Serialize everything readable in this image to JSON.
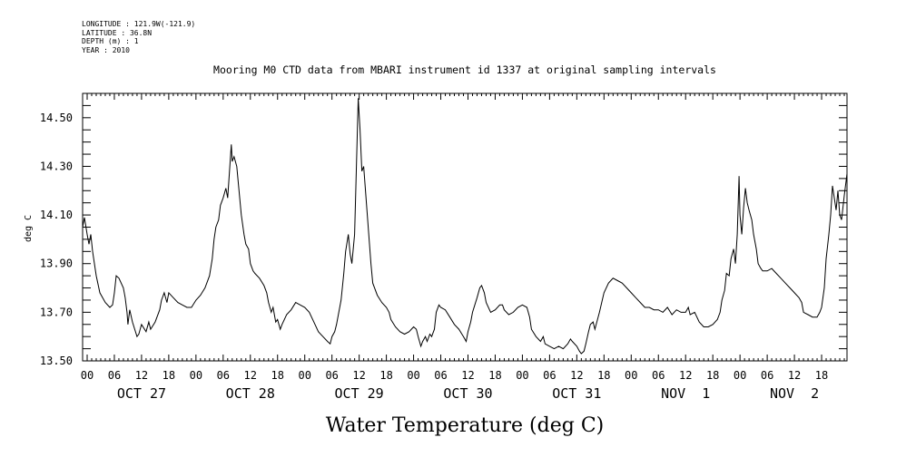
{
  "header": {
    "longitude": "LONGITUDE : 121.9W(-121.9)",
    "latitude": "LATITUDE : 36.8N",
    "depth": "DEPTH (m) : 1",
    "year": "YEAR : 2010"
  },
  "chart_data": {
    "type": "line",
    "title": "Mooring M0 CTD data from MBARI instrument id 1337 at original sampling intervals",
    "ylabel": "deg C",
    "xlabel": "Water Temperature (deg C)",
    "ylim": [
      13.5,
      14.6
    ],
    "yticks": [
      13.5,
      13.7,
      13.9,
      14.1,
      14.3,
      14.5
    ],
    "ytick_labels": [
      "13.50",
      "13.70",
      "13.90",
      "14.10",
      "14.30",
      "14.50"
    ],
    "xlim_hours": [
      -1,
      167.6
    ],
    "x_tick_hours": [
      0,
      6,
      12,
      18,
      24,
      30,
      36,
      42,
      48,
      54,
      60,
      66,
      72,
      78,
      84,
      90,
      96,
      102,
      108,
      114,
      120,
      126,
      132,
      138,
      144,
      150,
      156,
      162
    ],
    "x_tick_labels": [
      "00",
      "06",
      "12",
      "18",
      "00",
      "06",
      "12",
      "18",
      "00",
      "06",
      "12",
      "18",
      "00",
      "06",
      "12",
      "18",
      "00",
      "06",
      "12",
      "18",
      "00",
      "06",
      "12",
      "18",
      "00",
      "06",
      "12",
      "18"
    ],
    "dates": [
      {
        "label": "OCT 27",
        "hour": 12
      },
      {
        "label": "OCT 28",
        "hour": 36
      },
      {
        "label": "OCT 29",
        "hour": 60
      },
      {
        "label": "OCT 30",
        "hour": 84
      },
      {
        "label": "OCT 31",
        "hour": 108
      },
      {
        "label": "NOV  1",
        "hour": 132
      },
      {
        "label": "NOV  2",
        "hour": 156
      }
    ],
    "series": [
      {
        "values": [
          [
            -1,
            14.05
          ],
          [
            -0.6,
            14.09
          ],
          [
            0,
            14.02
          ],
          [
            0.4,
            13.98
          ],
          [
            0.8,
            14.02
          ],
          [
            1.2,
            13.95
          ],
          [
            2,
            13.85
          ],
          [
            2.8,
            13.78
          ],
          [
            4,
            13.74
          ],
          [
            5,
            13.72
          ],
          [
            5.6,
            13.73
          ],
          [
            6,
            13.78
          ],
          [
            6.4,
            13.85
          ],
          [
            7,
            13.84
          ],
          [
            8,
            13.8
          ],
          [
            8.4,
            13.76
          ],
          [
            8.8,
            13.7
          ],
          [
            9,
            13.65
          ],
          [
            9.4,
            13.71
          ],
          [
            10,
            13.66
          ],
          [
            11,
            13.6
          ],
          [
            11.4,
            13.61
          ],
          [
            12,
            13.65
          ],
          [
            13,
            13.62
          ],
          [
            13.6,
            13.66
          ],
          [
            14,
            13.63
          ],
          [
            15,
            13.66
          ],
          [
            16,
            13.71
          ],
          [
            16.4,
            13.75
          ],
          [
            17,
            13.78
          ],
          [
            17.6,
            13.74
          ],
          [
            18,
            13.78
          ],
          [
            19,
            13.76
          ],
          [
            20,
            13.74
          ],
          [
            21,
            13.73
          ],
          [
            22,
            13.72
          ],
          [
            23,
            13.72
          ],
          [
            24,
            13.75
          ],
          [
            25,
            13.77
          ],
          [
            26,
            13.8
          ],
          [
            27,
            13.85
          ],
          [
            27.6,
            13.92
          ],
          [
            28,
            14.0
          ],
          [
            28.4,
            14.05
          ],
          [
            29,
            14.08
          ],
          [
            29.4,
            14.14
          ],
          [
            30,
            14.17
          ],
          [
            30.6,
            14.21
          ],
          [
            31,
            14.17
          ],
          [
            31.4,
            14.28
          ],
          [
            31.8,
            14.39
          ],
          [
            32,
            14.32
          ],
          [
            32.4,
            14.34
          ],
          [
            33,
            14.3
          ],
          [
            33.4,
            14.22
          ],
          [
            34,
            14.1
          ],
          [
            34.6,
            14.02
          ],
          [
            35,
            13.98
          ],
          [
            35.6,
            13.96
          ],
          [
            36,
            13.9
          ],
          [
            36.6,
            13.87
          ],
          [
            37,
            13.86
          ],
          [
            38,
            13.84
          ],
          [
            39,
            13.81
          ],
          [
            39.6,
            13.78
          ],
          [
            40,
            13.74
          ],
          [
            40.6,
            13.7
          ],
          [
            41,
            13.72
          ],
          [
            41.6,
            13.66
          ],
          [
            42,
            13.67
          ],
          [
            42.6,
            13.63
          ],
          [
            43,
            13.65
          ],
          [
            44,
            13.69
          ],
          [
            45,
            13.71
          ],
          [
            46,
            13.74
          ],
          [
            47,
            13.73
          ],
          [
            48,
            13.72
          ],
          [
            49,
            13.7
          ],
          [
            50,
            13.66
          ],
          [
            51,
            13.62
          ],
          [
            52,
            13.6
          ],
          [
            53,
            13.58
          ],
          [
            53.6,
            13.57
          ],
          [
            54,
            13.6
          ],
          [
            54.6,
            13.62
          ],
          [
            55,
            13.65
          ],
          [
            56,
            13.75
          ],
          [
            56.6,
            13.86
          ],
          [
            57,
            13.95
          ],
          [
            57.6,
            14.02
          ],
          [
            58,
            13.94
          ],
          [
            58.4,
            13.9
          ],
          [
            59,
            14.02
          ],
          [
            59.4,
            14.3
          ],
          [
            59.8,
            14.58
          ],
          [
            60.2,
            14.45
          ],
          [
            60.6,
            14.28
          ],
          [
            61,
            14.3
          ],
          [
            61.4,
            14.2
          ],
          [
            62,
            14.05
          ],
          [
            62.6,
            13.9
          ],
          [
            63,
            13.82
          ],
          [
            64,
            13.77
          ],
          [
            65,
            13.74
          ],
          [
            66,
            13.72
          ],
          [
            66.6,
            13.7
          ],
          [
            67,
            13.67
          ],
          [
            68,
            13.64
          ],
          [
            69,
            13.62
          ],
          [
            70,
            13.61
          ],
          [
            71,
            13.62
          ],
          [
            72,
            13.64
          ],
          [
            72.6,
            13.63
          ],
          [
            73,
            13.6
          ],
          [
            73.6,
            13.56
          ],
          [
            74,
            13.58
          ],
          [
            74.6,
            13.6
          ],
          [
            75,
            13.58
          ],
          [
            75.6,
            13.61
          ],
          [
            76,
            13.6
          ],
          [
            76.6,
            13.63
          ],
          [
            77,
            13.7
          ],
          [
            77.6,
            13.73
          ],
          [
            78,
            13.72
          ],
          [
            79,
            13.71
          ],
          [
            80,
            13.68
          ],
          [
            81,
            13.65
          ],
          [
            82,
            13.63
          ],
          [
            83,
            13.6
          ],
          [
            83.6,
            13.58
          ],
          [
            84,
            13.62
          ],
          [
            84.6,
            13.66
          ],
          [
            85,
            13.7
          ],
          [
            86,
            13.76
          ],
          [
            86.6,
            13.8
          ],
          [
            87,
            13.81
          ],
          [
            87.6,
            13.78
          ],
          [
            88,
            13.74
          ],
          [
            89,
            13.7
          ],
          [
            90,
            13.71
          ],
          [
            91,
            13.73
          ],
          [
            91.6,
            13.73
          ],
          [
            92,
            13.71
          ],
          [
            93,
            13.69
          ],
          [
            94,
            13.7
          ],
          [
            95,
            13.72
          ],
          [
            96,
            13.73
          ],
          [
            97,
            13.72
          ],
          [
            97.6,
            13.68
          ],
          [
            98,
            13.63
          ],
          [
            99,
            13.6
          ],
          [
            100,
            13.58
          ],
          [
            100.6,
            13.6
          ],
          [
            101,
            13.57
          ],
          [
            102,
            13.56
          ],
          [
            103,
            13.55
          ],
          [
            104,
            13.56
          ],
          [
            105,
            13.55
          ],
          [
            106,
            13.57
          ],
          [
            106.6,
            13.59
          ],
          [
            107,
            13.58
          ],
          [
            108,
            13.56
          ],
          [
            108.6,
            13.54
          ],
          [
            109,
            13.53
          ],
          [
            109.6,
            13.54
          ],
          [
            110,
            13.57
          ],
          [
            110.6,
            13.62
          ],
          [
            111,
            13.65
          ],
          [
            111.6,
            13.66
          ],
          [
            112,
            13.63
          ],
          [
            113,
            13.7
          ],
          [
            114,
            13.78
          ],
          [
            115,
            13.82
          ],
          [
            116,
            13.84
          ],
          [
            117,
            13.83
          ],
          [
            118,
            13.82
          ],
          [
            119,
            13.8
          ],
          [
            120,
            13.78
          ],
          [
            121,
            13.76
          ],
          [
            122,
            13.74
          ],
          [
            123,
            13.72
          ],
          [
            124,
            13.72
          ],
          [
            125,
            13.71
          ],
          [
            126,
            13.71
          ],
          [
            127,
            13.7
          ],
          [
            128,
            13.72
          ],
          [
            129,
            13.69
          ],
          [
            130,
            13.71
          ],
          [
            131,
            13.7
          ],
          [
            132,
            13.7
          ],
          [
            132.6,
            13.72
          ],
          [
            133,
            13.69
          ],
          [
            134,
            13.7
          ],
          [
            135,
            13.66
          ],
          [
            136,
            13.64
          ],
          [
            137,
            13.64
          ],
          [
            138,
            13.65
          ],
          [
            139,
            13.67
          ],
          [
            139.6,
            13.7
          ],
          [
            140,
            13.75
          ],
          [
            140.6,
            13.79
          ],
          [
            141,
            13.86
          ],
          [
            141.6,
            13.85
          ],
          [
            142,
            13.92
          ],
          [
            142.6,
            13.96
          ],
          [
            143,
            13.9
          ],
          [
            143.4,
            14.02
          ],
          [
            143.8,
            14.26
          ],
          [
            144,
            14.1
          ],
          [
            144.4,
            14.02
          ],
          [
            144.8,
            14.13
          ],
          [
            145.2,
            14.21
          ],
          [
            145.6,
            14.15
          ],
          [
            146,
            14.12
          ],
          [
            146.6,
            14.08
          ],
          [
            147,
            14.02
          ],
          [
            147.6,
            13.96
          ],
          [
            148,
            13.9
          ],
          [
            148.6,
            13.88
          ],
          [
            149,
            13.87
          ],
          [
            150,
            13.87
          ],
          [
            151,
            13.88
          ],
          [
            152,
            13.86
          ],
          [
            153,
            13.84
          ],
          [
            154,
            13.82
          ],
          [
            155,
            13.8
          ],
          [
            156,
            13.78
          ],
          [
            157,
            13.76
          ],
          [
            157.6,
            13.74
          ],
          [
            158,
            13.7
          ],
          [
            159,
            13.69
          ],
          [
            160,
            13.68
          ],
          [
            161,
            13.68
          ],
          [
            161.6,
            13.7
          ],
          [
            162,
            13.72
          ],
          [
            162.6,
            13.8
          ],
          [
            163,
            13.92
          ],
          [
            163.6,
            14.02
          ],
          [
            164,
            14.1
          ],
          [
            164.4,
            14.22
          ],
          [
            164.8,
            14.17
          ],
          [
            165.2,
            14.12
          ],
          [
            165.6,
            14.2
          ],
          [
            166,
            14.1
          ],
          [
            166.4,
            14.08
          ],
          [
            167,
            14.18
          ],
          [
            167.6,
            14.27
          ]
        ]
      }
    ]
  }
}
